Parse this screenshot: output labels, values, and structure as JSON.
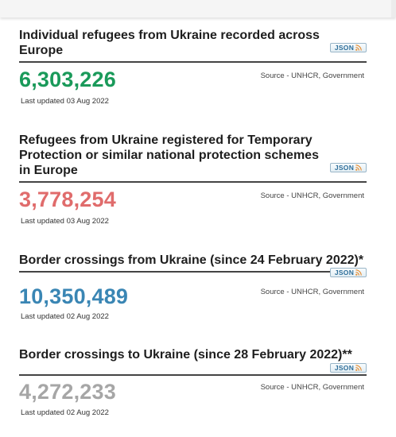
{
  "colors": {
    "refugees": "#1a9a5a",
    "temporary_protection": "#e06c6c",
    "crossings_from": "#3a86b4",
    "crossings_to": "#a6a6a6"
  },
  "panels": [
    {
      "title": "Individual refugees from Ukraine recorded across Europe",
      "json_label": "JSON",
      "json_icon": "rss-icon",
      "value": "6,303,226",
      "source": "Source - UNHCR, Government",
      "updated": "Last updated 03 Aug 2022"
    },
    {
      "title": "Refugees from Ukraine registered for Temporary Protection or similar national protection schemes in Europe",
      "json_label": "JSON",
      "json_icon": "rss-icon",
      "value": "3,778,254",
      "source": "Source - UNHCR, Government",
      "updated": "Last updated 03 Aug 2022"
    },
    {
      "title": "Border crossings from Ukraine (since 24 February 2022)*",
      "json_label": "JSON",
      "json_icon": "rss-icon",
      "value": "10,350,489",
      "source": "Source - UNHCR, Government",
      "updated": "Last updated 02 Aug 2022"
    },
    {
      "title": "Border crossings to Ukraine (since 28 February 2022)**",
      "json_label": "JSON",
      "json_icon": "rss-icon",
      "value": "4,272,233",
      "source": "Source - UNHCR, Government",
      "updated": "Last updated 02 Aug 2022"
    }
  ]
}
